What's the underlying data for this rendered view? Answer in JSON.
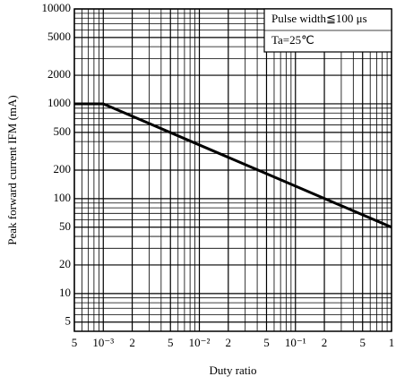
{
  "chart_data": {
    "type": "line",
    "xlabel": "Duty ratio",
    "ylabel": "Peak forward current IFM (mA)",
    "annotations": [
      "Pulse width≦100 μs",
      "Ta=25℃"
    ],
    "x": [
      0.0005,
      0.001,
      1
    ],
    "series": [
      {
        "name": "IFM",
        "color": "#000000",
        "values": [
          1000,
          1000,
          50
        ]
      }
    ],
    "xscale": "log",
    "yscale": "log",
    "xlim": [
      0.0005,
      1
    ],
    "ylim": [
      4,
      10000
    ],
    "xticks": [
      {
        "value": 0.0005,
        "label": "5"
      },
      {
        "value": 0.001,
        "label": "10⁻³"
      },
      {
        "value": 0.002,
        "label": "2"
      },
      {
        "value": 0.005,
        "label": "5"
      },
      {
        "value": 0.01,
        "label": "10⁻²"
      },
      {
        "value": 0.02,
        "label": "2"
      },
      {
        "value": 0.05,
        "label": "5"
      },
      {
        "value": 0.1,
        "label": "10⁻¹"
      },
      {
        "value": 0.2,
        "label": "2"
      },
      {
        "value": 0.5,
        "label": "5"
      },
      1
    ],
    "yticks": [
      5,
      10,
      20,
      50,
      100,
      200,
      500,
      1000,
      2000,
      5000,
      10000
    ],
    "xminor_ticks": [
      0.0006,
      0.0007,
      0.0008,
      0.0009,
      0.003,
      0.004,
      0.006,
      0.007,
      0.008,
      0.009,
      0.03,
      0.04,
      0.06,
      0.07,
      0.08,
      0.09,
      0.3,
      0.4,
      0.6,
      0.7,
      0.8,
      0.9
    ],
    "yminor_ticks": [
      6,
      7,
      8,
      9,
      30,
      40,
      60,
      70,
      80,
      90,
      300,
      400,
      600,
      700,
      800,
      900,
      3000,
      4000,
      6000,
      7000,
      8000,
      9000
    ],
    "grid": true
  }
}
